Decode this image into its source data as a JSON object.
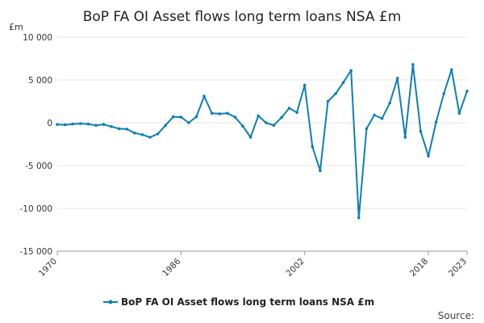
{
  "colors": {
    "series": "#0f7fb4"
  },
  "source_label": "Source:",
  "chart_data": {
    "type": "line",
    "title": "BoP FA OI Asset flows long term loans NSA £m",
    "ylabel": "£m",
    "xlabel": "",
    "ylim": [
      -15000,
      10000
    ],
    "yticks": [
      10000,
      5000,
      0,
      -5000,
      -10000,
      -15000
    ],
    "ytick_labels": [
      "10 000",
      "5 000",
      "0",
      "-5 000",
      "-10 000",
      "-15 000"
    ],
    "xlim": [
      1970,
      2023
    ],
    "xticks": [
      1970,
      1986,
      2002,
      2018,
      2023
    ],
    "xtick_labels": [
      "1970",
      "1986",
      "2002",
      "2018",
      "2023"
    ],
    "grid": true,
    "legend": "bottom-center",
    "x": [
      1970,
      1971,
      1972,
      1973,
      1974,
      1975,
      1976,
      1977,
      1978,
      1979,
      1980,
      1981,
      1982,
      1983,
      1984,
      1985,
      1986,
      1987,
      1988,
      1989,
      1990,
      1991,
      1992,
      1993,
      1994,
      1995,
      1996,
      1997,
      1998,
      1999,
      2000,
      2001,
      2002,
      2003,
      2004,
      2005,
      2006,
      2007,
      2008,
      2009,
      2010,
      2011,
      2012,
      2013,
      2014,
      2015,
      2016,
      2017,
      2018,
      2019,
      2020,
      2021,
      2022,
      2023
    ],
    "series": [
      {
        "name": "BoP FA OI Asset flows long term loans NSA £m",
        "values": [
          -200,
          -250,
          -150,
          -100,
          -150,
          -300,
          -200,
          -450,
          -700,
          -750,
          -1200,
          -1400,
          -1700,
          -1300,
          -300,
          700,
          650,
          0,
          700,
          3100,
          1100,
          1050,
          1100,
          650,
          -400,
          -1700,
          800,
          0,
          -300,
          600,
          1700,
          1200,
          4400,
          -2800,
          -5600,
          2500,
          3400,
          4700,
          6100,
          -11100,
          -700,
          900,
          500,
          2300,
          5200,
          -1700,
          6800,
          -1000,
          -3900,
          100,
          3400,
          6200,
          1100,
          3700
        ]
      }
    ]
  }
}
